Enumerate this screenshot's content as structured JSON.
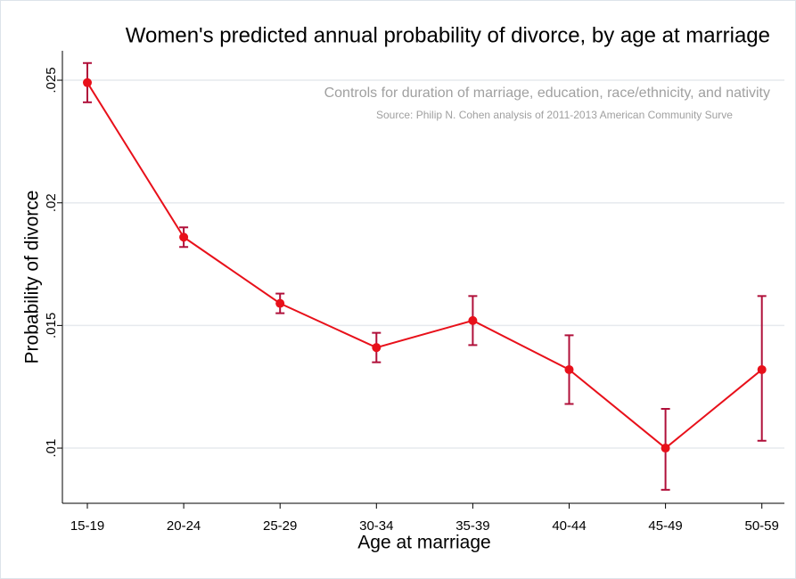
{
  "chart_data": {
    "type": "line",
    "title": "Women's predicted annual probability of divorce, by age at marriage",
    "subtitle": "Controls for duration of marriage, education, race/ethnicity, and nativity",
    "note": "Source: Philip N. Cohen analysis of 2011-2013 American Community Surve",
    "x_label": "Age at marriage",
    "y_label": "Probability of divorce",
    "categories": [
      "15-19",
      "20-24",
      "25-29",
      "30-34",
      "35-39",
      "40-44",
      "45-49",
      "50-59"
    ],
    "values": [
      0.0249,
      0.0186,
      0.0159,
      0.0141,
      0.0152,
      0.0132,
      0.01,
      0.0132
    ],
    "upper": [
      0.0257,
      0.019,
      0.0163,
      0.0147,
      0.0162,
      0.0146,
      0.0116,
      0.0162
    ],
    "lower": [
      0.0241,
      0.0182,
      0.0155,
      0.0135,
      0.0142,
      0.0118,
      0.0083,
      0.0103
    ],
    "color": "#e8101a",
    "error_color": "#b0103a",
    "ylim": [
      0.00775,
      0.0262
    ],
    "yticks": [
      {
        "value": 0.01,
        "label": ".01"
      },
      {
        "value": 0.015,
        "label": ".015"
      },
      {
        "value": 0.02,
        "label": ".02"
      },
      {
        "value": 0.025,
        "label": ".025"
      }
    ],
    "grid": true
  }
}
